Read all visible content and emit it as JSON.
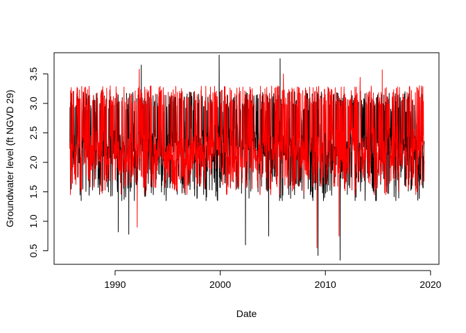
{
  "chart_data": {
    "type": "line",
    "title": "",
    "xlabel": "Date",
    "ylabel": "Groundwater level (ft NGVD 29)",
    "xlim": [
      1984.2,
      2020.8
    ],
    "ylim": [
      0.27,
      3.86
    ],
    "xticks": [
      "1990",
      "2000",
      "2010",
      "2020"
    ],
    "yticks": [
      "0.5",
      "1.0",
      "1.5",
      "2.0",
      "2.5",
      "3.0",
      "3.5"
    ],
    "x_range": [
      1985.7,
      2019.4
    ],
    "grid": false,
    "legend": "none",
    "series": [
      {
        "color": "#000000",
        "start_year": 1985.7,
        "end_year": 2019.4,
        "baseline": 2.2,
        "typical_range": [
          1.4,
          3.2
        ],
        "notable_points": [
          {
            "x": 1992.5,
            "y": 3.65
          },
          {
            "x": 1999.9,
            "y": 3.82
          },
          {
            "x": 2005.7,
            "y": 3.76
          },
          {
            "x": 2002.4,
            "y": 0.6
          },
          {
            "x": 2004.6,
            "y": 0.75
          },
          {
            "x": 2009.3,
            "y": 0.42
          },
          {
            "x": 2011.4,
            "y": 0.34
          },
          {
            "x": 1990.3,
            "y": 0.82
          },
          {
            "x": 1991.3,
            "y": 0.78
          }
        ]
      },
      {
        "color": "#ff0000",
        "start_year": 1985.7,
        "end_year": 2019.4,
        "baseline": 2.15,
        "typical_range": [
          1.5,
          3.3
        ],
        "notable_points": [
          {
            "x": 1992.3,
            "y": 3.58
          },
          {
            "x": 2015.4,
            "y": 3.57
          },
          {
            "x": 2006.0,
            "y": 3.5
          },
          {
            "x": 2013.3,
            "y": 3.44
          },
          {
            "x": 1992.1,
            "y": 0.9
          },
          {
            "x": 2009.2,
            "y": 0.55
          },
          {
            "x": 2011.3,
            "y": 0.75
          }
        ]
      }
    ]
  }
}
